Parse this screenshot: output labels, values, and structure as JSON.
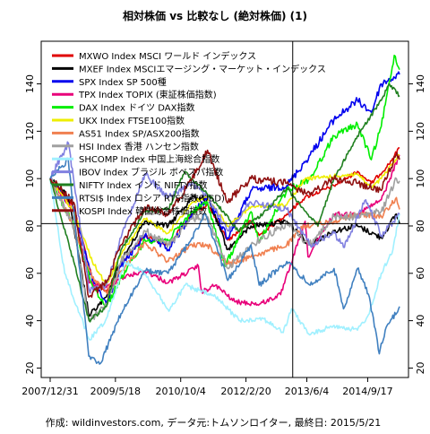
{
  "chart_data": {
    "type": "line",
    "title": "相対株価 vs 比較なし (絶対株価) (1)",
    "footer": "作成: wildinvestors.com, データ元:トムソンロイター, 最終日: 2015/5/21",
    "x_tick_labels": [
      "2007/12/31",
      "2009/5/18",
      "2010/10/4",
      "2012/2/20",
      "2013/6/4",
      "2014/9/17"
    ],
    "x_ticks": [
      "2007-12-31",
      "2009-05-18",
      "2010-10-04",
      "2012-02-20",
      "2013-06-04",
      "2014-09-17"
    ],
    "x_range": [
      "2007-12-31",
      "2015-05-21"
    ],
    "y_ticks": [
      20,
      40,
      60,
      80,
      100,
      120,
      140
    ],
    "ylim": [
      16,
      158
    ],
    "y_axes": "left and right",
    "grid": false,
    "crosshair": {
      "x": "2013-02-15",
      "y": 81
    },
    "legend_position": "top-left",
    "series": [
      {
        "name": "MXWO Index MSCI ワールド インデックス",
        "color": "#e00000",
        "x": [
          "2007-12-31",
          "2008-06-30",
          "2008-11-20",
          "2009-03-09",
          "2009-06-30",
          "2009-12-31",
          "2010-06-30",
          "2010-12-31",
          "2011-04-29",
          "2011-10-03",
          "2012-03-30",
          "2012-06-01",
          "2012-12-31",
          "2013-05-20",
          "2013-12-31",
          "2014-06-30",
          "2014-10-15",
          "2015-02-27",
          "2015-05-21"
        ],
        "y": [
          100,
          88,
          58,
          52,
          64,
          76,
          72,
          85,
          89,
          74,
          82,
          76,
          85,
          92,
          97,
          103,
          98,
          106,
          113
        ]
      },
      {
        "name": "MXEF Index MSCIエマージング・マーケット・インデックス",
        "color": "#000000",
        "x": [
          "2007-12-31",
          "2008-05-20",
          "2008-10-27",
          "2009-03-09",
          "2009-06-30",
          "2009-12-31",
          "2010-06-30",
          "2010-12-31",
          "2011-04-29",
          "2011-10-03",
          "2012-03-30",
          "2012-12-31",
          "2013-06-24",
          "2013-12-31",
          "2014-06-30",
          "2014-12-31",
          "2015-04-27",
          "2015-05-21"
        ],
        "y": [
          100,
          92,
          42,
          50,
          65,
          82,
          80,
          92,
          92,
          70,
          80,
          82,
          72,
          78,
          80,
          75,
          85,
          81
        ]
      },
      {
        "name": "SPX Index SP 500種",
        "color": "#0000ee",
        "x": [
          "2007-12-31",
          "2008-06-30",
          "2008-11-20",
          "2009-03-09",
          "2009-06-30",
          "2009-12-31",
          "2010-06-30",
          "2010-12-31",
          "2011-04-29",
          "2011-10-03",
          "2012-03-30",
          "2012-12-31",
          "2013-06-30",
          "2013-12-31",
          "2014-06-30",
          "2014-10-15",
          "2014-12-31",
          "2015-05-21"
        ],
        "y": [
          100,
          87,
          57,
          47,
          63,
          76,
          70,
          85,
          92,
          75,
          95,
          97,
          110,
          125,
          133,
          128,
          140,
          144
        ]
      },
      {
        "name": "TPX Index TOPIX (東証株価指数)",
        "color": "#e8007a",
        "x": [
          "2007-12-31",
          "2008-06-30",
          "2008-10-27",
          "2009-03-09",
          "2009-06-30",
          "2009-12-31",
          "2010-06-30",
          "2011-02-18",
          "2011-03-15",
          "2011-06-30",
          "2011-11-25",
          "2012-06-04",
          "2012-11-14",
          "2013-05-22",
          "2013-06-13",
          "2013-12-31",
          "2014-06-30",
          "2014-12-31",
          "2015-05-21"
        ],
        "y": [
          100,
          86,
          56,
          54,
          58,
          61,
          56,
          63,
          52,
          55,
          48,
          47,
          51,
          82,
          67,
          85,
          85,
          91,
          110
        ]
      },
      {
        "name": "DAX Index ドイツ DAX指数",
        "color": "#00ee00",
        "x": [
          "2007-12-31",
          "2008-06-30",
          "2008-11-20",
          "2009-03-09",
          "2009-06-30",
          "2009-12-31",
          "2010-06-30",
          "2010-12-31",
          "2011-04-29",
          "2011-09-12",
          "2012-03-30",
          "2012-06-01",
          "2012-12-31",
          "2013-06-30",
          "2013-12-31",
          "2014-06-30",
          "2014-10-15",
          "2014-12-31",
          "2015-04-10",
          "2015-05-21"
        ],
        "y": [
          100,
          80,
          55,
          46,
          58,
          74,
          74,
          86,
          90,
          63,
          86,
          73,
          95,
          100,
          118,
          123,
          108,
          122,
          152,
          146
        ]
      },
      {
        "name": "UKX Index FTSE100指数",
        "color": "#eeee00",
        "x": [
          "2007-12-31",
          "2008-06-30",
          "2008-11-20",
          "2009-03-09",
          "2009-06-30",
          "2009-12-31",
          "2010-06-30",
          "2010-12-31",
          "2011-04-29",
          "2011-10-03",
          "2012-03-30",
          "2012-12-31",
          "2013-05-22",
          "2013-12-31",
          "2014-06-30",
          "2014-10-15",
          "2014-12-31",
          "2015-05-21"
        ],
        "y": [
          100,
          86,
          65,
          55,
          68,
          83,
          77,
          90,
          92,
          80,
          88,
          89,
          100,
          101,
          102,
          96,
          100,
          110
        ]
      },
      {
        "name": "AS51 Index SP/ASX200指数",
        "color": "#f08050",
        "x": [
          "2007-12-31",
          "2008-06-30",
          "2008-11-20",
          "2009-03-09",
          "2009-06-30",
          "2009-12-31",
          "2010-06-30",
          "2010-12-31",
          "2011-04-29",
          "2011-10-03",
          "2012-03-30",
          "2012-12-31",
          "2013-05-14",
          "2013-12-31",
          "2014-06-30",
          "2014-12-31",
          "2015-04-27",
          "2015-05-21"
        ],
        "y": [
          100,
          80,
          58,
          52,
          61,
          73,
          65,
          72,
          72,
          64,
          67,
          72,
          80,
          82,
          85,
          84,
          92,
          87
        ]
      },
      {
        "name": "HSI Index 香港 ハンセン指数",
        "color": "#a0a0a0",
        "x": [
          "2007-12-31",
          "2008-06-30",
          "2008-10-27",
          "2009-03-09",
          "2009-06-30",
          "2009-12-31",
          "2010-06-30",
          "2010-12-31",
          "2011-04-29",
          "2011-10-03",
          "2012-03-30",
          "2012-12-31",
          "2013-06-24",
          "2013-12-31",
          "2014-06-30",
          "2014-12-31",
          "2015-04-27",
          "2015-05-21"
        ],
        "y": [
          100,
          80,
          40,
          47,
          65,
          78,
          72,
          83,
          84,
          62,
          72,
          81,
          72,
          84,
          84,
          86,
          100,
          99
        ]
      },
      {
        "name": "SHCOMP Index 中国上海総合指数",
        "color": "#a0f0ff",
        "x": [
          "2007-12-31",
          "2008-04-21",
          "2008-10-28",
          "2009-03-02",
          "2009-08-04",
          "2009-12-31",
          "2010-07-05",
          "2010-11-08",
          "2011-06-30",
          "2012-01-05",
          "2012-06-30",
          "2012-12-04",
          "2013-02-06",
          "2013-06-25",
          "2013-12-31",
          "2014-06-30",
          "2014-09-30",
          "2014-12-31",
          "2015-03-31",
          "2015-05-21"
        ],
        "y": [
          100,
          60,
          32,
          40,
          65,
          60,
          44,
          55,
          50,
          40,
          41,
          35,
          45,
          34,
          38,
          36,
          43,
          60,
          70,
          85
        ]
      },
      {
        "name": "IBOV Index ブラジル ボベスパ指数",
        "color": "#8080e0",
        "x": [
          "2007-12-31",
          "2008-05-20",
          "2008-10-27",
          "2009-03-09",
          "2009-06-30",
          "2009-12-31",
          "2010-06-30",
          "2010-12-31",
          "2011-04-29",
          "2011-10-03",
          "2012-03-30",
          "2012-12-31",
          "2013-06-30",
          "2013-12-31",
          "2014-03-14",
          "2014-09-02",
          "2014-12-31",
          "2015-05-21"
        ],
        "y": [
          100,
          115,
          53,
          55,
          75,
          102,
          92,
          98,
          92,
          78,
          90,
          87,
          72,
          77,
          71,
          91,
          76,
          85
        ]
      },
      {
        "name": "NIFTY Index インド NIFTY指数",
        "color": "#208020",
        "x": [
          "2007-12-31",
          "2008-06-30",
          "2008-10-27",
          "2009-03-09",
          "2009-06-30",
          "2009-12-31",
          "2010-06-30",
          "2010-11-05",
          "2011-06-30",
          "2011-12-20",
          "2012-06-30",
          "2012-12-31",
          "2013-08-28",
          "2013-12-31",
          "2014-06-30",
          "2014-12-31",
          "2015-03-04",
          "2015-05-21"
        ],
        "y": [
          100,
          65,
          40,
          46,
          70,
          86,
          87,
          103,
          90,
          78,
          85,
          96,
          80,
          100,
          118,
          133,
          140,
          135
        ]
      },
      {
        "name": "RTSI$ Index ロシア RTS指数(USD)",
        "color": "#4080c0",
        "x": [
          "2007-12-31",
          "2008-05-19",
          "2008-10-24",
          "2009-01-23",
          "2009-06-30",
          "2009-12-31",
          "2010-06-30",
          "2010-12-31",
          "2011-04-08",
          "2011-10-03",
          "2012-03-30",
          "2012-06-01",
          "2012-12-31",
          "2013-06-30",
          "2013-12-31",
          "2014-03-14",
          "2014-06-30",
          "2014-09-30",
          "2014-12-16",
          "2015-01-30",
          "2015-05-21"
        ],
        "y": [
          100,
          108,
          25,
          22,
          43,
          61,
          60,
          75,
          85,
          57,
          72,
          55,
          65,
          55,
          62,
          45,
          62,
          50,
          26,
          36,
          46
        ]
      },
      {
        "name": "KOSPI Index 韓国総合株価指数",
        "color": "#901010",
        "x": [
          "2007-12-31",
          "2008-06-30",
          "2008-10-24",
          "2009-03-09",
          "2009-06-30",
          "2009-12-31",
          "2010-06-30",
          "2010-12-31",
          "2011-04-29",
          "2011-09-26",
          "2012-03-30",
          "2012-12-31",
          "2013-06-30",
          "2013-12-31",
          "2014-06-30",
          "2014-12-31",
          "2015-04-24",
          "2015-05-21"
        ],
        "y": [
          100,
          90,
          50,
          56,
          72,
          88,
          85,
          100,
          112,
          90,
          100,
          98,
          93,
          100,
          98,
          95,
          110,
          108
        ]
      }
    ]
  }
}
